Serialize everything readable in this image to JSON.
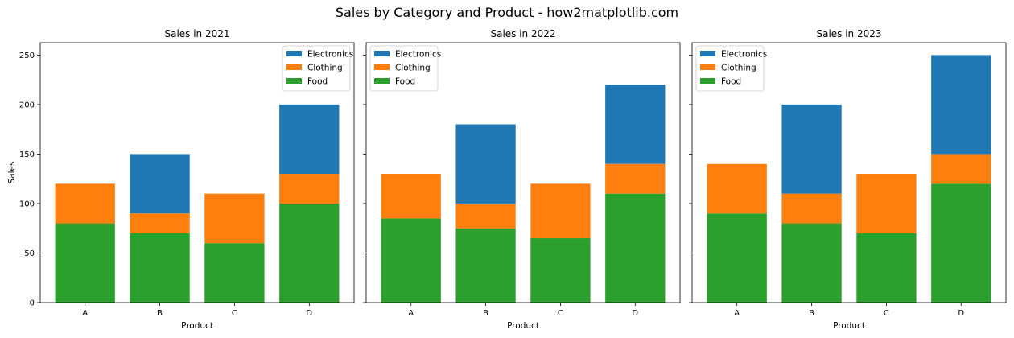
{
  "figure": {
    "title": "Sales by Category and Product - how2matplotlib.com"
  },
  "colors": {
    "Electronics": "#1f77b4",
    "Clothing": "#ff7f0e",
    "Food": "#2ca02c"
  },
  "chart_data": [
    {
      "type": "bar",
      "stacked": true,
      "title": "Sales in 2021",
      "xlabel": "Product",
      "ylabel": "Sales",
      "categories": [
        "A",
        "B",
        "C",
        "D"
      ],
      "ylim": [
        0,
        262.5
      ],
      "yticks": [
        0,
        50,
        100,
        150,
        200,
        250
      ],
      "legend_position": "upper right",
      "series": [
        {
          "name": "Food",
          "values": [
            80,
            70,
            60,
            100
          ]
        },
        {
          "name": "Clothing",
          "values": [
            40,
            20,
            50,
            30
          ]
        },
        {
          "name": "Electronics",
          "values": [
            0,
            60,
            0,
            70
          ]
        }
      ],
      "legend_order": [
        "Electronics",
        "Clothing",
        "Food"
      ]
    },
    {
      "type": "bar",
      "stacked": true,
      "title": "Sales in 2022",
      "xlabel": "Product",
      "ylabel": "",
      "categories": [
        "A",
        "B",
        "C",
        "D"
      ],
      "ylim": [
        0,
        262.5
      ],
      "yticks": [
        0,
        50,
        100,
        150,
        200,
        250
      ],
      "legend_position": "upper left",
      "series": [
        {
          "name": "Food",
          "values": [
            85,
            75,
            65,
            110
          ]
        },
        {
          "name": "Clothing",
          "values": [
            45,
            25,
            55,
            30
          ]
        },
        {
          "name": "Electronics",
          "values": [
            0,
            80,
            0,
            80
          ]
        }
      ],
      "legend_order": [
        "Electronics",
        "Clothing",
        "Food"
      ]
    },
    {
      "type": "bar",
      "stacked": true,
      "title": "Sales in 2023",
      "xlabel": "Product",
      "ylabel": "",
      "categories": [
        "A",
        "B",
        "C",
        "D"
      ],
      "ylim": [
        0,
        262.5
      ],
      "yticks": [
        0,
        50,
        100,
        150,
        200,
        250
      ],
      "legend_position": "upper left",
      "series": [
        {
          "name": "Food",
          "values": [
            90,
            80,
            70,
            120
          ]
        },
        {
          "name": "Clothing",
          "values": [
            50,
            30,
            60,
            30
          ]
        },
        {
          "name": "Electronics",
          "values": [
            0,
            90,
            0,
            100
          ]
        }
      ],
      "legend_order": [
        "Electronics",
        "Clothing",
        "Food"
      ]
    }
  ]
}
